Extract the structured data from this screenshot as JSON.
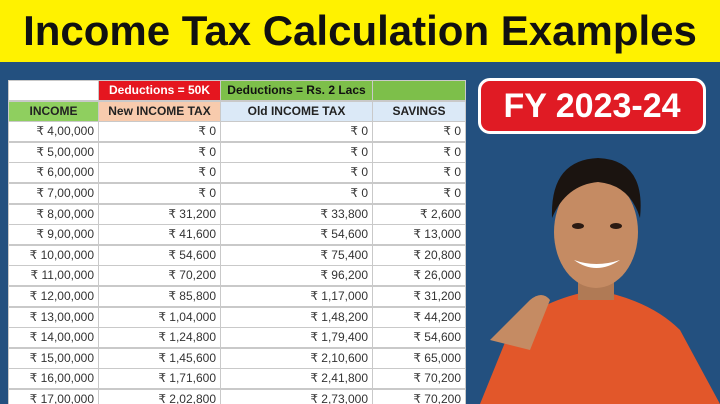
{
  "header": {
    "title": "Income Tax Calculation Examples"
  },
  "badge": "FY 2023-24",
  "table": {
    "group_headers": [
      "",
      "Deductions = 50K",
      "Deductions = Rs. 2 Lacs",
      ""
    ],
    "columns": [
      "INCOME",
      "New INCOME TAX",
      "Old INCOME TAX",
      "SAVINGS"
    ],
    "rows": [
      [
        "₹ 4,00,000",
        "₹ 0",
        "₹ 0",
        "₹ 0"
      ],
      [
        "₹ 5,00,000",
        "₹ 0",
        "₹ 0",
        "₹ 0"
      ],
      [
        "₹ 6,00,000",
        "₹ 0",
        "₹ 0",
        "₹ 0"
      ],
      [
        "₹ 7,00,000",
        "₹ 0",
        "₹ 0",
        "₹ 0"
      ],
      [
        "₹ 8,00,000",
        "₹ 31,200",
        "₹ 33,800",
        "₹ 2,600"
      ],
      [
        "₹ 9,00,000",
        "₹ 41,600",
        "₹ 54,600",
        "₹ 13,000"
      ],
      [
        "₹ 10,00,000",
        "₹ 54,600",
        "₹ 75,400",
        "₹ 20,800"
      ],
      [
        "₹ 11,00,000",
        "₹ 70,200",
        "₹ 96,200",
        "₹ 26,000"
      ],
      [
        "₹ 12,00,000",
        "₹ 85,800",
        "₹ 1,17,000",
        "₹ 31,200"
      ],
      [
        "₹ 13,00,000",
        "₹ 1,04,000",
        "₹ 1,48,200",
        "₹ 44,200"
      ],
      [
        "₹ 14,00,000",
        "₹ 1,24,800",
        "₹ 1,79,400",
        "₹ 54,600"
      ],
      [
        "₹ 15,00,000",
        "₹ 1,45,600",
        "₹ 2,10,600",
        "₹ 65,000"
      ],
      [
        "₹ 16,00,000",
        "₹ 1,71,600",
        "₹ 2,41,800",
        "₹ 70,200"
      ],
      [
        "₹ 17,00,000",
        "₹ 2,02,800",
        "₹ 2,73,000",
        "₹ 70,200"
      ]
    ]
  }
}
